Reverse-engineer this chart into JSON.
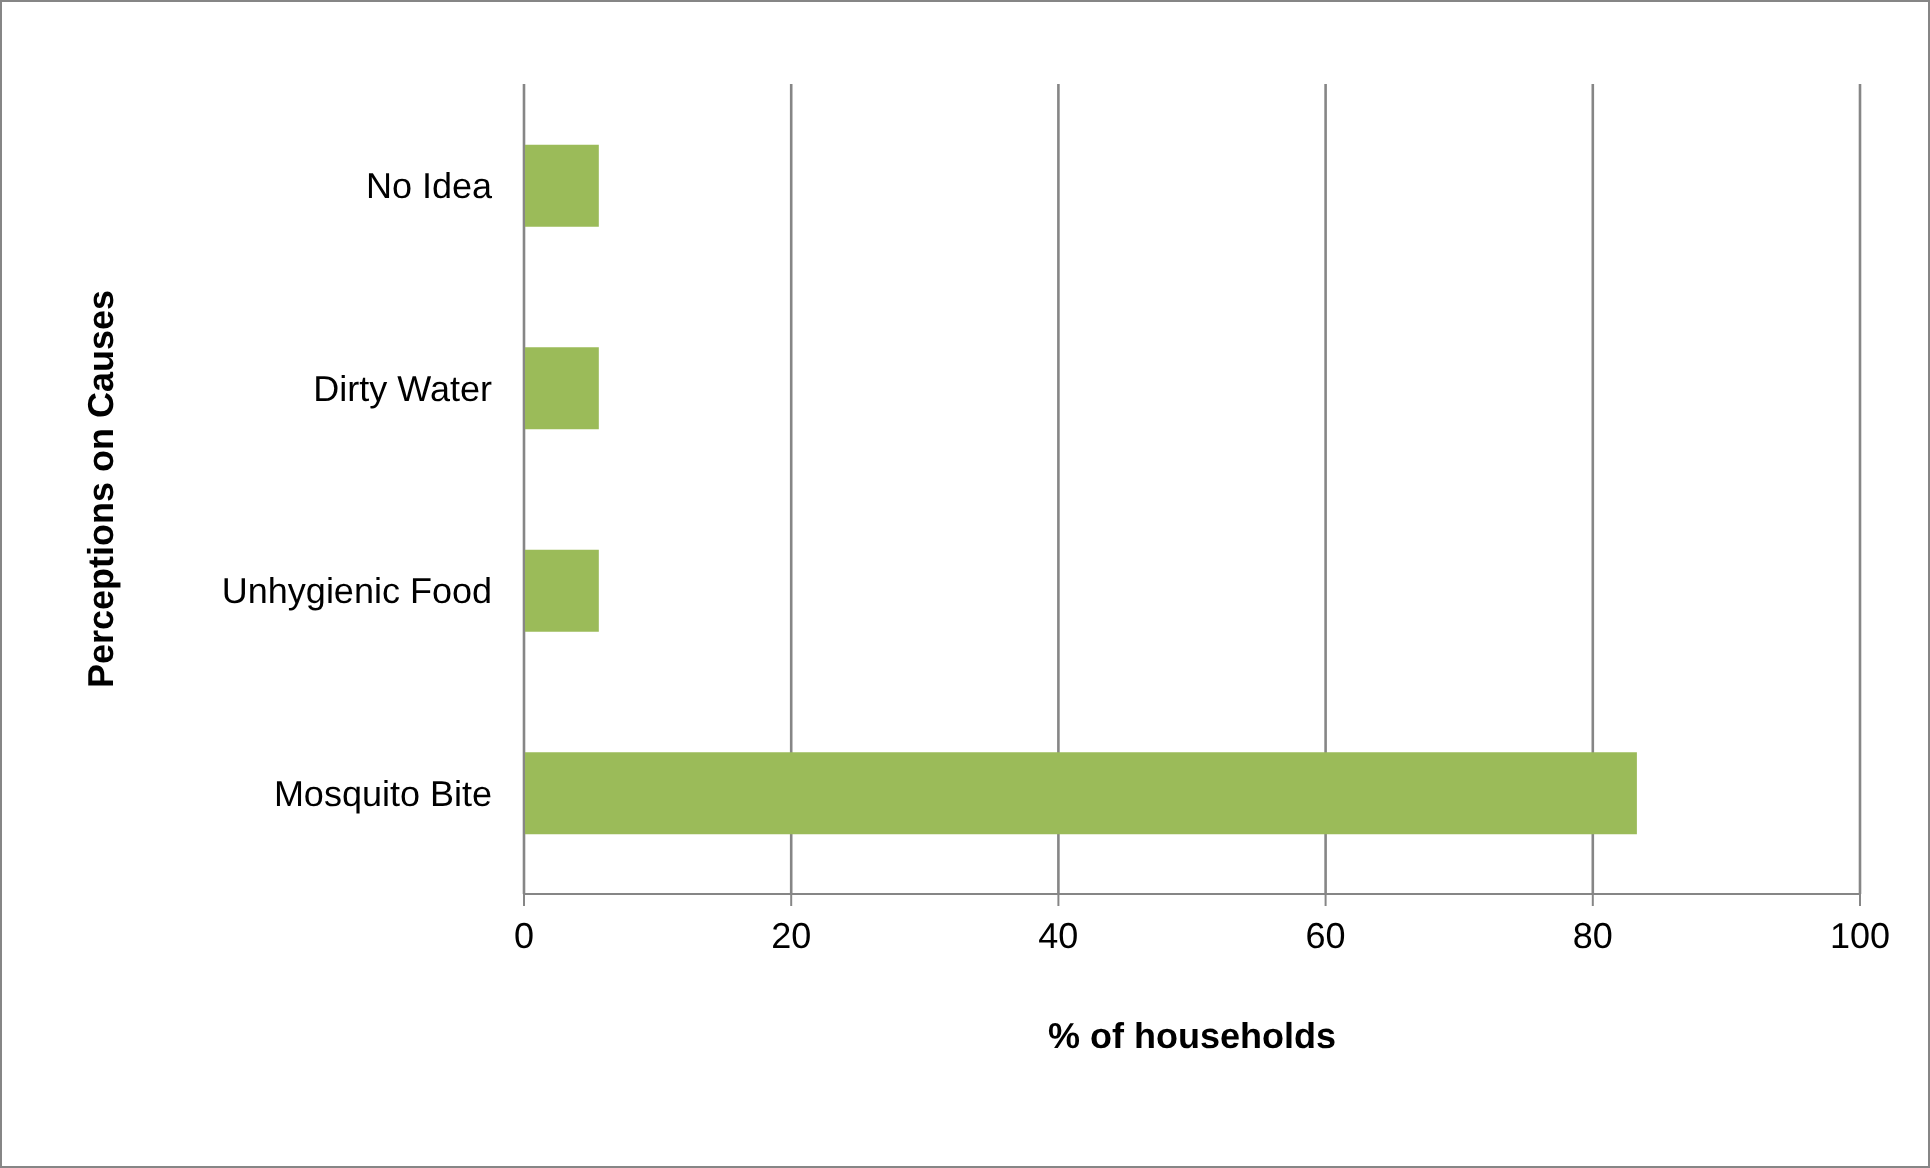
{
  "chart_data": {
    "type": "bar",
    "orientation": "horizontal",
    "xlabel": "% of households",
    "ylabel": "Perceptions on Causes",
    "categories": [
      "No Idea",
      "Dirty Water",
      "Unhygienic Food",
      "Mosquito Bite"
    ],
    "values": [
      5.6,
      5.6,
      5.6,
      83.3
    ],
    "color": "#9bbb59",
    "xlim": [
      0,
      100
    ],
    "xticks": [
      0,
      20,
      40,
      60,
      80,
      100
    ],
    "grid": "x",
    "legend": false
  }
}
